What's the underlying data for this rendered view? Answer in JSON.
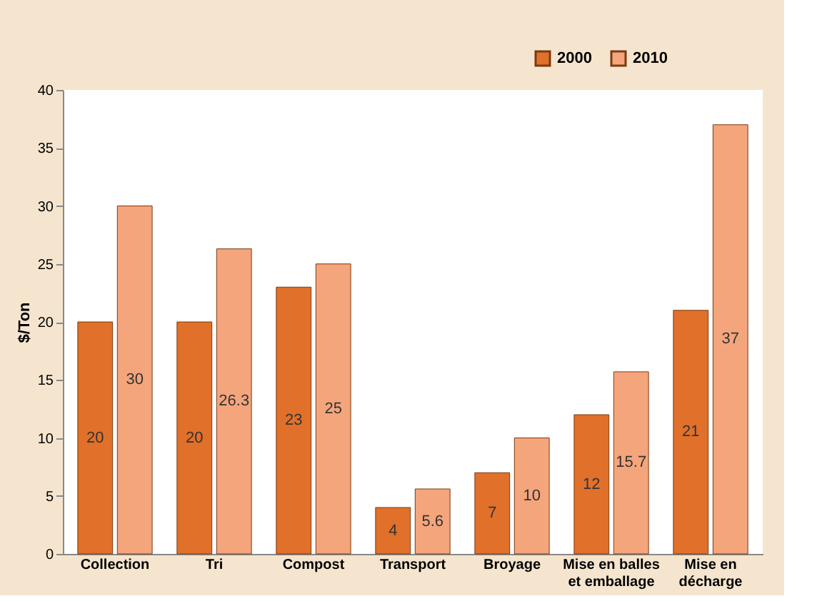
{
  "chart_data": {
    "type": "bar",
    "ylabel": "$/Ton",
    "categories": [
      "Collection",
      "Tri",
      "Compost",
      "Transport",
      "Broyage",
      "Mise en balles et emballage",
      "Mise en décharge"
    ],
    "series": [
      {
        "name": "2000",
        "color": "#e0702a",
        "values": [
          20,
          20,
          23,
          4,
          7,
          12,
          21
        ]
      },
      {
        "name": "2010",
        "color": "#f4a57c",
        "values": [
          30,
          26.3,
          25,
          5.6,
          10,
          15.7,
          37
        ]
      }
    ],
    "data_labels": true,
    "ylim": [
      0,
      40
    ],
    "yticks": [
      0,
      5,
      10,
      15,
      20,
      25,
      30,
      35,
      40
    ],
    "grid": false,
    "legend": "top right"
  }
}
